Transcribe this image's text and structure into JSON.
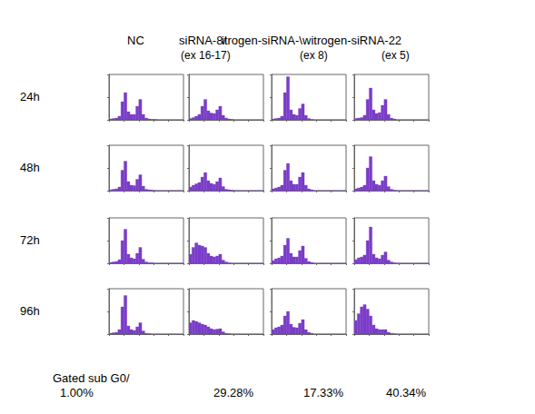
{
  "columns": [
    {
      "name": "NC"
    },
    {
      "name": "siRNA-8/",
      "sub": "(ex 16-17)"
    },
    {
      "name": "itrogen-siRNA-\\",
      "sub": "(ex 8)"
    },
    {
      "name": "witrogen-siRNA-22",
      "sub": "(ex 5)"
    }
  ],
  "rows": [
    "24h",
    "48h",
    "72h",
    "96h"
  ],
  "footer": {
    "label": "Gated sub G0/",
    "values": [
      1.0,
      29.28,
      17.33,
      40.34
    ],
    "value_labels": [
      "1.00%",
      "29.28%",
      "17.33%",
      "40.34%"
    ]
  },
  "chart_data": [
    {
      "type": "histogram",
      "color": "#7a3cc8",
      "bins": [
        0,
        40,
        80,
        120,
        160,
        200,
        240,
        280,
        320,
        360,
        400,
        440,
        480,
        520,
        560,
        600,
        640,
        680,
        720,
        760,
        800,
        840,
        880,
        920,
        960,
        1000
      ],
      "counts": [
        2,
        3,
        4,
        8,
        40,
        60,
        18,
        12,
        12,
        30,
        45,
        12,
        4,
        2,
        1,
        1,
        0,
        0,
        0,
        0,
        0,
        0,
        0,
        0,
        0
      ],
      "xlim": [
        0,
        1000
      ],
      "xticks": [
        0,
        200,
        400,
        600,
        800,
        1000
      ],
      "ylim": [
        0,
        100
      ],
      "yticks": [
        0,
        50,
        100
      ],
      "tick_labels": false,
      "grid": false
    },
    {
      "type": "histogram",
      "color": "#7a3cc8",
      "bins": [
        0,
        40,
        80,
        120,
        160,
        200,
        240,
        280,
        320,
        360,
        400,
        440,
        480,
        520,
        560,
        600,
        640,
        680,
        720,
        760,
        800,
        840,
        880,
        920,
        960,
        1000
      ],
      "counts": [
        3,
        5,
        8,
        12,
        30,
        45,
        20,
        15,
        14,
        22,
        30,
        10,
        4,
        2,
        1,
        0,
        0,
        0,
        0,
        0,
        0,
        0,
        0,
        0,
        0
      ],
      "xlim": [
        0,
        1000
      ],
      "xticks": [
        0,
        200,
        400,
        600,
        800,
        1000
      ],
      "ylim": [
        0,
        100
      ],
      "yticks": [
        0,
        50,
        100
      ],
      "tick_labels": false,
      "grid": false
    },
    {
      "type": "histogram",
      "color": "#7a3cc8",
      "bins": [
        0,
        40,
        80,
        120,
        160,
        200,
        240,
        280,
        320,
        360,
        400,
        440,
        480,
        520,
        560,
        600,
        640,
        680,
        720,
        760,
        800,
        840,
        880,
        920,
        960,
        1000
      ],
      "counts": [
        2,
        3,
        4,
        8,
        60,
        95,
        22,
        12,
        10,
        25,
        35,
        10,
        3,
        1,
        0,
        0,
        0,
        0,
        0,
        0,
        0,
        0,
        0,
        0,
        0
      ],
      "xlim": [
        0,
        1000
      ],
      "xticks": [
        0,
        200,
        400,
        600,
        800,
        1000
      ],
      "ylim": [
        0,
        100
      ],
      "yticks": [
        0,
        50,
        100
      ],
      "tick_labels": false,
      "grid": false
    },
    {
      "type": "histogram",
      "color": "#7a3cc8",
      "bins": [
        0,
        40,
        80,
        120,
        160,
        200,
        240,
        280,
        320,
        360,
        400,
        440,
        480,
        520,
        560,
        600,
        640,
        680,
        720,
        760,
        800,
        840,
        880,
        920,
        960,
        1000
      ],
      "counts": [
        3,
        4,
        5,
        10,
        45,
        70,
        22,
        14,
        16,
        32,
        45,
        12,
        4,
        2,
        0,
        0,
        0,
        0,
        0,
        0,
        0,
        0,
        0,
        0,
        0
      ],
      "xlim": [
        0,
        1000
      ],
      "xticks": [
        0,
        200,
        400,
        600,
        800,
        1000
      ],
      "ylim": [
        0,
        100
      ],
      "yticks": [
        0,
        50,
        100
      ],
      "tick_labels": false,
      "grid": false
    },
    {
      "type": "histogram",
      "color": "#7a3cc8",
      "bins": [
        0,
        40,
        80,
        120,
        160,
        200,
        240,
        280,
        320,
        360,
        400,
        440,
        480,
        520,
        560,
        600,
        640,
        680,
        720,
        760,
        800,
        840,
        880,
        920,
        960,
        1000
      ],
      "counts": [
        2,
        3,
        4,
        8,
        45,
        65,
        20,
        12,
        11,
        25,
        35,
        10,
        3,
        2,
        1,
        0,
        0,
        0,
        0,
        0,
        0,
        0,
        0,
        0,
        0
      ],
      "xlim": [
        0,
        1000
      ],
      "xticks": [
        0,
        200,
        400,
        600,
        800,
        1000
      ],
      "ylim": [
        0,
        100
      ],
      "yticks": [
        0,
        50,
        100
      ],
      "tick_labels": false,
      "grid": false
    },
    {
      "type": "histogram",
      "color": "#7a3cc8",
      "bins": [
        0,
        40,
        80,
        120,
        160,
        200,
        240,
        280,
        320,
        360,
        400,
        440,
        480,
        520,
        560,
        600,
        640,
        680,
        720,
        760,
        800,
        840,
        880,
        920,
        960,
        1000
      ],
      "counts": [
        8,
        12,
        15,
        18,
        30,
        40,
        22,
        16,
        14,
        20,
        28,
        9,
        3,
        2,
        1,
        0,
        0,
        0,
        0,
        0,
        0,
        0,
        0,
        0,
        0
      ],
      "xlim": [
        0,
        1000
      ],
      "xticks": [
        0,
        200,
        400,
        600,
        800,
        1000
      ],
      "ylim": [
        0,
        100
      ],
      "yticks": [
        0,
        50,
        100
      ],
      "tick_labels": false,
      "grid": false
    },
    {
      "type": "histogram",
      "color": "#7a3cc8",
      "bins": [
        0,
        40,
        80,
        120,
        160,
        200,
        240,
        280,
        320,
        360,
        400,
        440,
        480,
        520,
        560,
        600,
        640,
        680,
        720,
        760,
        800,
        840,
        880,
        920,
        960,
        1000
      ],
      "counts": [
        4,
        6,
        8,
        12,
        45,
        60,
        22,
        14,
        14,
        30,
        40,
        12,
        4,
        2,
        0,
        0,
        0,
        0,
        0,
        0,
        0,
        0,
        0,
        0,
        0
      ],
      "xlim": [
        0,
        1000
      ],
      "xticks": [
        0,
        200,
        400,
        600,
        800,
        1000
      ],
      "ylim": [
        0,
        100
      ],
      "yticks": [
        0,
        50,
        100
      ],
      "tick_labels": false,
      "grid": false
    },
    {
      "type": "histogram",
      "color": "#7a3cc8",
      "bins": [
        0,
        40,
        80,
        120,
        160,
        200,
        240,
        280,
        320,
        360,
        400,
        440,
        480,
        520,
        560,
        600,
        640,
        680,
        720,
        760,
        800,
        840,
        880,
        920,
        960,
        1000
      ],
      "counts": [
        4,
        6,
        8,
        12,
        50,
        75,
        22,
        14,
        12,
        22,
        32,
        9,
        3,
        1,
        0,
        0,
        0,
        0,
        0,
        0,
        0,
        0,
        0,
        0,
        0
      ],
      "xlim": [
        0,
        1000
      ],
      "xticks": [
        0,
        200,
        400,
        600,
        800,
        1000
      ],
      "ylim": [
        0,
        100
      ],
      "yticks": [
        0,
        50,
        100
      ],
      "tick_labels": false,
      "grid": false
    },
    {
      "type": "histogram",
      "color": "#7a3cc8",
      "bins": [
        0,
        40,
        80,
        120,
        160,
        200,
        240,
        280,
        320,
        360,
        400,
        440,
        480,
        520,
        560,
        600,
        640,
        680,
        720,
        760,
        800,
        840,
        880,
        920,
        960,
        1000
      ],
      "counts": [
        2,
        3,
        4,
        8,
        50,
        75,
        20,
        12,
        10,
        22,
        35,
        9,
        3,
        1,
        1,
        0,
        0,
        0,
        0,
        0,
        0,
        0,
        0,
        0,
        0
      ],
      "xlim": [
        0,
        1000
      ],
      "xticks": [
        0,
        200,
        400,
        600,
        800,
        1000
      ],
      "ylim": [
        0,
        100
      ],
      "yticks": [
        0,
        50,
        100
      ],
      "tick_labels": false,
      "grid": false
    },
    {
      "type": "histogram",
      "color": "#7a3cc8",
      "bins": [
        0,
        40,
        80,
        120,
        160,
        200,
        240,
        280,
        320,
        360,
        400,
        440,
        480,
        520,
        560,
        600,
        640,
        680,
        720,
        760,
        800,
        840,
        880,
        920,
        960,
        1000
      ],
      "counts": [
        20,
        35,
        45,
        40,
        38,
        35,
        22,
        16,
        14,
        16,
        20,
        7,
        3,
        1,
        0,
        0,
        0,
        0,
        0,
        0,
        0,
        0,
        0,
        0,
        0
      ],
      "xlim": [
        0,
        1000
      ],
      "xticks": [
        0,
        200,
        400,
        600,
        800,
        1000
      ],
      "ylim": [
        0,
        100
      ],
      "yticks": [
        0,
        50,
        100
      ],
      "tick_labels": false,
      "grid": false
    },
    {
      "type": "histogram",
      "color": "#7a3cc8",
      "bins": [
        0,
        40,
        80,
        120,
        160,
        200,
        240,
        280,
        320,
        360,
        400,
        440,
        480,
        520,
        560,
        600,
        640,
        680,
        720,
        760,
        800,
        840,
        880,
        920,
        960,
        1000
      ],
      "counts": [
        6,
        10,
        12,
        16,
        40,
        55,
        22,
        14,
        14,
        28,
        38,
        11,
        4,
        2,
        0,
        0,
        0,
        0,
        0,
        0,
        0,
        0,
        0,
        0,
        0
      ],
      "xlim": [
        0,
        1000
      ],
      "xticks": [
        0,
        200,
        400,
        600,
        800,
        1000
      ],
      "ylim": [
        0,
        100
      ],
      "yticks": [
        0,
        50,
        100
      ],
      "tick_labels": false,
      "grid": false
    },
    {
      "type": "histogram",
      "color": "#7a3cc8",
      "bins": [
        0,
        40,
        80,
        120,
        160,
        200,
        240,
        280,
        320,
        360,
        400,
        440,
        480,
        520,
        560,
        600,
        640,
        680,
        720,
        760,
        800,
        840,
        880,
        920,
        960,
        1000
      ],
      "counts": [
        8,
        12,
        14,
        18,
        50,
        80,
        20,
        12,
        10,
        18,
        25,
        7,
        3,
        1,
        0,
        0,
        0,
        0,
        0,
        0,
        0,
        0,
        0,
        0,
        0
      ],
      "xlim": [
        0,
        1000
      ],
      "xticks": [
        0,
        200,
        400,
        600,
        800,
        1000
      ],
      "ylim": [
        0,
        100
      ],
      "yticks": [
        0,
        50,
        100
      ],
      "tick_labels": false,
      "grid": false
    },
    {
      "type": "histogram",
      "color": "#7a3cc8",
      "bins": [
        0,
        40,
        80,
        120,
        160,
        200,
        240,
        280,
        320,
        360,
        400,
        440,
        480,
        520,
        560,
        600,
        640,
        680,
        720,
        760,
        800,
        840,
        880,
        920,
        960,
        1000
      ],
      "counts": [
        2,
        3,
        4,
        10,
        60,
        85,
        18,
        10,
        8,
        16,
        25,
        7,
        2,
        1,
        0,
        0,
        0,
        0,
        0,
        0,
        0,
        0,
        0,
        0,
        0
      ],
      "xlim": [
        0,
        1000
      ],
      "xticks": [
        0,
        200,
        400,
        600,
        800,
        1000
      ],
      "ylim": [
        0,
        100
      ],
      "yticks": [
        0,
        50,
        100
      ],
      "tick_labels": false,
      "grid": false
    },
    {
      "type": "histogram",
      "color": "#7a3cc8",
      "bins": [
        0,
        40,
        80,
        120,
        160,
        200,
        240,
        280,
        320,
        360,
        400,
        440,
        480,
        520,
        560,
        600,
        640,
        680,
        720,
        760,
        800,
        840,
        880,
        920,
        960,
        1000
      ],
      "counts": [
        25,
        30,
        28,
        25,
        22,
        20,
        16,
        12,
        10,
        11,
        12,
        5,
        2,
        1,
        0,
        0,
        0,
        0,
        0,
        0,
        0,
        0,
        0,
        0,
        0
      ],
      "xlim": [
        0,
        1000
      ],
      "xticks": [
        0,
        200,
        400,
        600,
        800,
        1000
      ],
      "ylim": [
        0,
        100
      ],
      "yticks": [
        0,
        50,
        100
      ],
      "tick_labels": false,
      "grid": false
    },
    {
      "type": "histogram",
      "color": "#7a3cc8",
      "bins": [
        0,
        40,
        80,
        120,
        160,
        200,
        240,
        280,
        320,
        360,
        400,
        440,
        480,
        520,
        560,
        600,
        640,
        680,
        720,
        760,
        800,
        840,
        880,
        920,
        960,
        1000
      ],
      "counts": [
        10,
        14,
        16,
        20,
        40,
        50,
        22,
        15,
        14,
        24,
        32,
        10,
        4,
        2,
        0,
        0,
        0,
        0,
        0,
        0,
        0,
        0,
        0,
        0,
        0
      ],
      "xlim": [
        0,
        1000
      ],
      "xticks": [
        0,
        200,
        400,
        600,
        800,
        1000
      ],
      "ylim": [
        0,
        100
      ],
      "yticks": [
        0,
        50,
        100
      ],
      "tick_labels": false,
      "grid": false
    },
    {
      "type": "histogram",
      "color": "#7a3cc8",
      "bins": [
        0,
        40,
        80,
        120,
        160,
        200,
        240,
        280,
        320,
        360,
        400,
        440,
        480,
        520,
        560,
        600,
        640,
        680,
        720,
        760,
        800,
        840,
        880,
        920,
        960,
        1000
      ],
      "counts": [
        30,
        45,
        60,
        65,
        55,
        40,
        20,
        12,
        10,
        10,
        10,
        4,
        2,
        1,
        0,
        0,
        0,
        0,
        0,
        0,
        0,
        0,
        0,
        0,
        0
      ],
      "xlim": [
        0,
        1000
      ],
      "xticks": [
        0,
        200,
        400,
        600,
        800,
        1000
      ],
      "ylim": [
        0,
        100
      ],
      "yticks": [
        0,
        50,
        100
      ],
      "tick_labels": false,
      "grid": false
    }
  ]
}
